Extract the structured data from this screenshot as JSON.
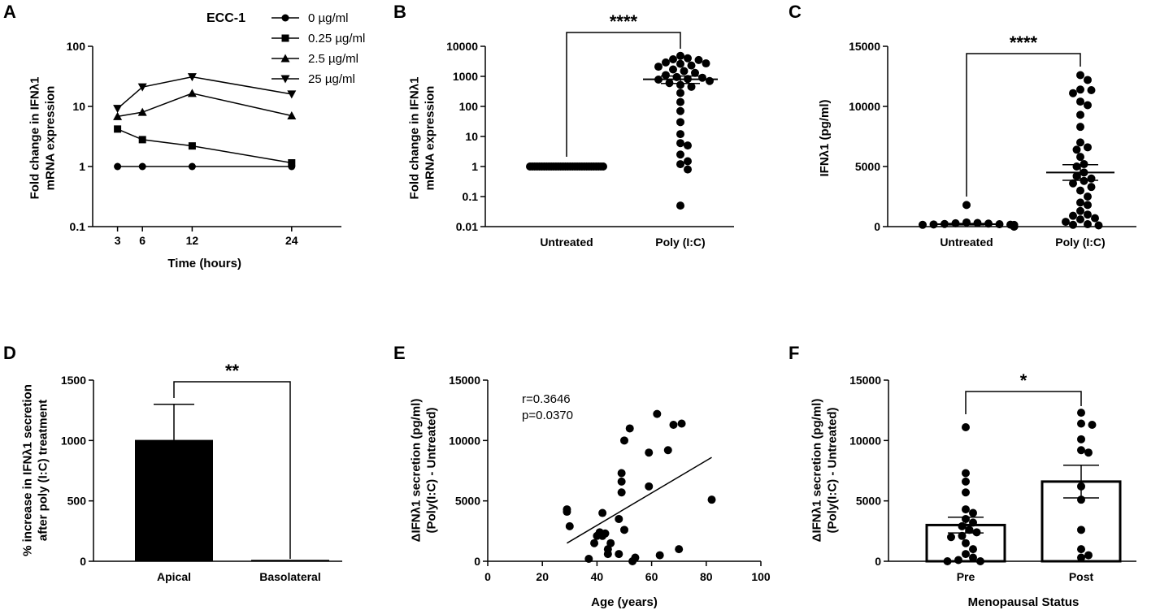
{
  "figure": {
    "panel_labels": [
      "A",
      "B",
      "C",
      "D",
      "E",
      "F"
    ]
  },
  "chart_data": [
    {
      "id": "A",
      "type": "line",
      "title": "ECC-1",
      "xlabel": "Time (hours)",
      "ylabel": [
        "Fold change in IFNλ1",
        "mRNA expression"
      ],
      "yscale": "log",
      "xlim": [
        0,
        30
      ],
      "ylim": [
        0.1,
        100
      ],
      "xticks": [
        3,
        6,
        12,
        24
      ],
      "yticks": [
        0.1,
        1,
        10,
        100
      ],
      "ytick_labels": [
        "0.1",
        "1",
        "10",
        "100"
      ],
      "x": [
        3,
        6,
        12,
        24
      ],
      "series": [
        {
          "name": "0 µg/ml",
          "marker": "circle",
          "values": [
            1,
            1,
            1,
            1
          ]
        },
        {
          "name": "0.25 µg/ml",
          "marker": "square",
          "values": [
            4.2,
            2.8,
            2.2,
            1.15
          ]
        },
        {
          "name": "2.5 µg/ml",
          "marker": "triangle-up",
          "values": [
            6.8,
            8,
            16.5,
            7
          ]
        },
        {
          "name": "25 µg/ml",
          "marker": "triangle-down",
          "values": [
            9.2,
            21,
            31,
            16
          ]
        }
      ]
    },
    {
      "id": "B",
      "type": "scatter",
      "title": "",
      "xlabel": "",
      "ylabel": [
        "Fold change in IFNλ1",
        "mRNA expression"
      ],
      "yscale": "log",
      "ylim": [
        0.01,
        10000
      ],
      "yticks": [
        0.01,
        0.1,
        1,
        10,
        100,
        1000,
        10000
      ],
      "ytick_labels": [
        "0.01",
        "0.1",
        "1",
        "10",
        "100",
        "1000",
        "10000"
      ],
      "categories": [
        "Untreated",
        "Poly (I:C)"
      ],
      "groups": [
        {
          "name": "Untreated",
          "values": [
            1,
            1,
            1,
            1,
            1,
            1,
            1,
            1,
            1,
            1,
            1,
            1,
            1,
            1,
            1,
            1,
            1,
            1,
            1,
            1,
            1,
            1,
            1,
            1,
            1,
            1,
            1,
            1,
            1,
            1,
            1,
            1
          ],
          "mean": 1,
          "sem": 0
        },
        {
          "name": "Poly (I:C)",
          "values": [
            4800,
            4000,
            3700,
            3500,
            2900,
            2700,
            2600,
            2300,
            2100,
            1700,
            1500,
            1300,
            1100,
            950,
            900,
            820,
            780,
            700,
            600,
            520,
            450,
            280,
            140,
            70,
            30,
            12,
            6,
            5,
            2.5,
            1.5,
            1.2,
            0.8,
            0.05
          ],
          "mean": 800,
          "sem": 220
        }
      ],
      "significance": "****"
    },
    {
      "id": "C",
      "type": "scatter",
      "title": "",
      "xlabel": "",
      "ylabel": [
        "IFNλ1 (pg/ml)"
      ],
      "ylim": [
        0,
        15000
      ],
      "yticks": [
        0,
        5000,
        10000,
        15000
      ],
      "ytick_labels": [
        "0",
        "5000",
        "10000",
        "15000"
      ],
      "categories": [
        "Untreated",
        "Poly (I:C)"
      ],
      "groups": [
        {
          "name": "Untreated",
          "values": [
            1800,
            350,
            300,
            280,
            250,
            220,
            200,
            180,
            160,
            150,
            140,
            120,
            110,
            100,
            90,
            80,
            70,
            60,
            50,
            40,
            30,
            20,
            10,
            0
          ],
          "mean": 200,
          "sem": 60
        },
        {
          "name": "Poly (I:C)",
          "values": [
            12600,
            12200,
            11400,
            11350,
            11100,
            10400,
            10100,
            9300,
            8300,
            7000,
            6600,
            6400,
            5800,
            5200,
            5000,
            4500,
            4200,
            4000,
            3800,
            3600,
            3300,
            3000,
            2500,
            2000,
            1800,
            1300,
            1000,
            900,
            700,
            600,
            400,
            200,
            150,
            100
          ],
          "mean": 4500,
          "sem": 650
        }
      ],
      "significance": "****"
    },
    {
      "id": "D",
      "type": "bar",
      "title": "",
      "xlabel": "",
      "ylabel": [
        "% increase in IFNλ1 secretion",
        "after poly (I:C) treatment"
      ],
      "ylim": [
        0,
        1500
      ],
      "yticks": [
        0,
        500,
        1000,
        1500
      ],
      "ytick_labels": [
        "0",
        "500",
        "1000",
        "1500"
      ],
      "categories": [
        "Apical",
        "Basolateral"
      ],
      "values": [
        1005,
        12
      ],
      "errors": [
        295,
        0
      ],
      "significance": "**"
    },
    {
      "id": "E",
      "type": "scatter",
      "title": "",
      "xlabel": "Age (years)",
      "ylabel": [
        "ΔIFNλ1 secretion (pg/ml)",
        "(Poly(I:C) - Untreated)"
      ],
      "xlim": [
        0,
        100
      ],
      "ylim": [
        0,
        15000
      ],
      "xticks": [
        0,
        20,
        40,
        60,
        80,
        100
      ],
      "xtick_labels": [
        "0",
        "20",
        "40",
        "60",
        "80",
        "100"
      ],
      "yticks": [
        0,
        5000,
        10000,
        15000
      ],
      "ytick_labels": [
        "0",
        "5000",
        "10000",
        "15000"
      ],
      "points": [
        [
          29,
          4300
        ],
        [
          29,
          4100
        ],
        [
          30,
          2900
        ],
        [
          37,
          200
        ],
        [
          39,
          1500
        ],
        [
          40,
          2100
        ],
        [
          41,
          2400
        ],
        [
          42,
          2100
        ],
        [
          42,
          4000
        ],
        [
          43,
          2300
        ],
        [
          44,
          1000
        ],
        [
          44,
          600
        ],
        [
          45,
          1500
        ],
        [
          48,
          3500
        ],
        [
          48,
          600
        ],
        [
          49,
          7300
        ],
        [
          49,
          6600
        ],
        [
          49,
          5700
        ],
        [
          50,
          2600
        ],
        [
          50,
          10000
        ],
        [
          52,
          11000
        ],
        [
          53,
          0
        ],
        [
          54,
          300
        ],
        [
          59,
          6200
        ],
        [
          59,
          9000
        ],
        [
          62,
          12200
        ],
        [
          63,
          500
        ],
        [
          66,
          9200
        ],
        [
          68,
          11300
        ],
        [
          70,
          1000
        ],
        [
          71,
          11400
        ],
        [
          82,
          5100
        ]
      ],
      "fit": {
        "x": [
          29,
          82
        ],
        "y": [
          1500,
          8600
        ]
      },
      "annotations": [
        "r=0.3646",
        "p=0.0370"
      ]
    },
    {
      "id": "F",
      "type": "bar",
      "title": "",
      "xlabel": "Menopausal Status",
      "ylabel": [
        "ΔIFNλ1 secretion (pg/ml)",
        "(Poly(I:C) - Untreated)"
      ],
      "ylim": [
        0,
        15000
      ],
      "yticks": [
        0,
        5000,
        10000,
        15000
      ],
      "ytick_labels": [
        "0",
        "5000",
        "10000",
        "15000"
      ],
      "categories": [
        "Pre",
        "Post"
      ],
      "values": [
        3000,
        6600
      ],
      "errors": [
        650,
        1350
      ],
      "groups": [
        {
          "name": "Pre",
          "values": [
            11100,
            7300,
            6600,
            5700,
            4300,
            4000,
            3500,
            3200,
            2900,
            2600,
            2400,
            2100,
            2000,
            1500,
            1000,
            600,
            300,
            100,
            0,
            0
          ]
        },
        {
          "name": "Post",
          "values": [
            12300,
            11300,
            11400,
            10100,
            9200,
            9000,
            6200,
            5100,
            2600,
            1000,
            500,
            300
          ]
        }
      ],
      "significance": "*"
    }
  ]
}
